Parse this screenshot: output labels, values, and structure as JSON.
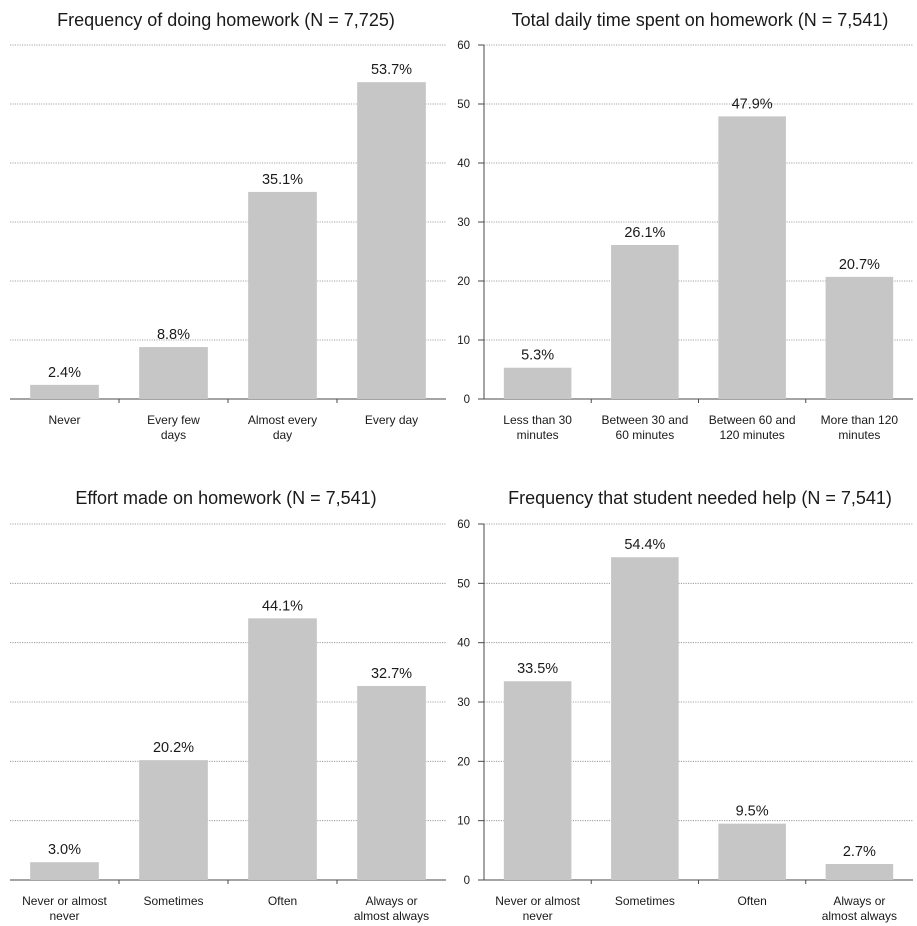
{
  "chart_data": [
    {
      "type": "bar",
      "title": "Frequency of doing homework (N = 7,725)",
      "categories": [
        [
          "Never"
        ],
        [
          "Every few",
          "days"
        ],
        [
          "Almost every",
          "day"
        ],
        [
          "Every day"
        ]
      ],
      "values": [
        2.4,
        8.8,
        35.1,
        53.7
      ],
      "value_labels": [
        "2.4%",
        "8.8%",
        "35.1%",
        "53.7%"
      ],
      "ylim": [
        0,
        60
      ],
      "yticks": [],
      "grid": true,
      "bar_color": "#c6c6c6"
    },
    {
      "type": "bar",
      "title": "Total daily time spent on homework (N = 7,541)",
      "categories": [
        [
          "Less than 30",
          "minutes"
        ],
        [
          "Between 30 and",
          "60 minutes"
        ],
        [
          "Between 60 and",
          "120 minutes"
        ],
        [
          "More than 120",
          "minutes"
        ]
      ],
      "values": [
        5.3,
        26.1,
        47.9,
        20.7
      ],
      "value_labels": [
        "5.3%",
        "26.1%",
        "47.9%",
        "20.7%"
      ],
      "ylim": [
        0,
        60
      ],
      "yticks": [
        "0",
        "10",
        "20",
        "30",
        "40",
        "50",
        "60"
      ],
      "grid": true,
      "bar_color": "#c6c6c6"
    },
    {
      "type": "bar",
      "title": "Effort made on homework (N = 7,541)",
      "categories": [
        [
          "Never or almost",
          "never"
        ],
        [
          "Sometimes"
        ],
        [
          "Often"
        ],
        [
          "Always or",
          "almost always"
        ]
      ],
      "values": [
        3.0,
        20.2,
        44.1,
        32.7
      ],
      "value_labels": [
        "3.0%",
        "20.2%",
        "44.1%",
        "32.7%"
      ],
      "ylim": [
        0,
        60
      ],
      "yticks": [],
      "grid": true,
      "bar_color": "#c6c6c6"
    },
    {
      "type": "bar",
      "title": "Frequency that student needed help (N = 7,541)",
      "categories": [
        [
          "Never or almost",
          "never"
        ],
        [
          "Sometimes"
        ],
        [
          "Often"
        ],
        [
          "Always or",
          "almost always"
        ]
      ],
      "values": [
        33.5,
        54.4,
        9.5,
        2.7
      ],
      "value_labels": [
        "33.5%",
        "54.4%",
        "9.5%",
        "2.7%"
      ],
      "ylim": [
        0,
        60
      ],
      "yticks": [
        "0",
        "10",
        "20",
        "30",
        "40",
        "50",
        "60"
      ],
      "grid": true,
      "bar_color": "#c6c6c6"
    }
  ]
}
